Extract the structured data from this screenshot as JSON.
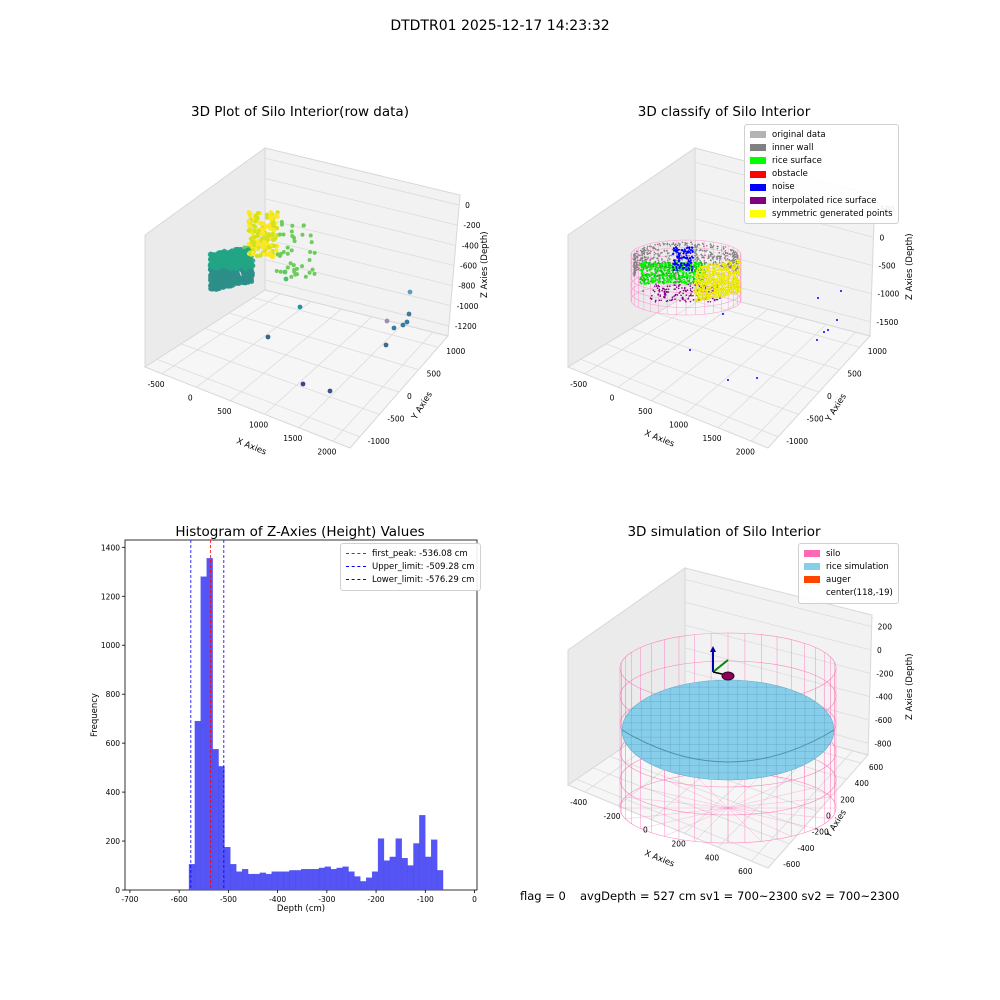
{
  "suptitle": "DTDTR01 2025-12-17 14:23:32",
  "chart_data": [
    {
      "type": "scatter",
      "title": "3D Plot of Silo Interior(row data)",
      "xlabel": "X Axies",
      "ylabel": "Y Axies",
      "zlabel": "Z Axies (Depth)",
      "x_ticks": [
        "-500",
        "0",
        "500",
        "1000",
        "1500",
        "2000"
      ],
      "y_ticks": [
        "-1000",
        "-500",
        "0",
        "500",
        "1000"
      ],
      "z_ticks": [
        "0",
        "-200",
        "-400",
        "-600",
        "-800",
        "-1000",
        "-1200"
      ]
    },
    {
      "type": "scatter",
      "title": "3D classify of Silo Interior",
      "xlabel": "X Axies",
      "ylabel": "Y Axies",
      "zlabel": "Z Axies (Depth)",
      "x_ticks": [
        "-500",
        "0",
        "500",
        "1000",
        "1500",
        "2000"
      ],
      "y_ticks": [
        "-1000",
        "-500",
        "0",
        "500",
        "1000"
      ],
      "z_ticks": [
        "500",
        "0",
        "-500",
        "-1000",
        "-1500"
      ],
      "legend": [
        {
          "label": "original data",
          "color": "#b3b3b3"
        },
        {
          "label": "inner wall",
          "color": "#808080"
        },
        {
          "label": "rice surface",
          "color": "#00ff00"
        },
        {
          "label": "obstacle",
          "color": "#ff0000"
        },
        {
          "label": "noise",
          "color": "#0000ff"
        },
        {
          "label": "interpolated rice surface",
          "color": "#800080"
        },
        {
          "label": "symmetric generated points",
          "color": "#ffff00"
        }
      ]
    },
    {
      "type": "bar",
      "title": "Histogram of Z-Axies (Height) Values",
      "xlabel": "Depth (cm)",
      "ylabel": "Frequency",
      "xlim": [
        -710,
        5
      ],
      "ylim": [
        0,
        1430
      ],
      "x_ticks": [
        -700,
        -600,
        -500,
        -400,
        -300,
        -200,
        -100,
        0
      ],
      "y_ticks": [
        0,
        200,
        400,
        600,
        800,
        1000,
        1200,
        1400
      ],
      "bin_width": 12,
      "bin_start": -580,
      "values": [
        105,
        690,
        1280,
        1355,
        575,
        505,
        175,
        105,
        75,
        85,
        65,
        65,
        70,
        65,
        75,
        75,
        75,
        80,
        80,
        85,
        85,
        85,
        90,
        95,
        85,
        90,
        95,
        75,
        55,
        35,
        50,
        75,
        210,
        120,
        135,
        210,
        130,
        100,
        190,
        305,
        135,
        205,
        80
      ],
      "lines": [
        {
          "label": "first_peak: -536.08 cm",
          "x": -536.08,
          "color": "#ff0000"
        },
        {
          "label": "Upper_limit: -509.28 cm",
          "x": -509.28,
          "color": "#0000ff"
        },
        {
          "label": "Lower_limit: -576.29 cm",
          "x": -576.29,
          "color": "#0000ff"
        }
      ]
    },
    {
      "type": "scatter",
      "title": "3D simulation of Silo Interior",
      "xlabel": "X Axies",
      "ylabel": "Y Axies",
      "zlabel": "Z Axies (Depth)",
      "x_ticks": [
        "-400",
        "-200",
        "0",
        "200",
        "400",
        "600"
      ],
      "y_ticks": [
        "-600",
        "-400",
        "-200",
        "0",
        "200",
        "400",
        "600"
      ],
      "z_ticks": [
        "200",
        "0",
        "-200",
        "-400",
        "-600",
        "-800"
      ],
      "legend": [
        {
          "label": "silo",
          "color": "#ff69b4"
        },
        {
          "label": "rice simulation",
          "color": "#87ceeb"
        },
        {
          "label": "auger",
          "color": "#ff4500"
        },
        {
          "label": "center(118,-19)",
          "color": ""
        }
      ]
    }
  ],
  "footer": {
    "flag": "flag = 0",
    "info": "avgDepth = 527 cm  sv1 = 700~2300  sv2 = 700~2300"
  }
}
